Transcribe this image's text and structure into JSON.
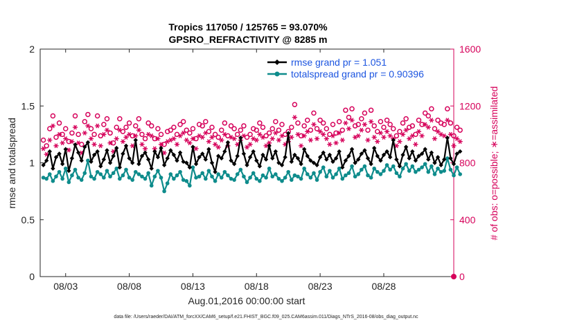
{
  "chart_data": {
    "type": "line",
    "title_line1": "Tropics 117050 / 125765 = 93.070%",
    "title_line2": "GPSRO_REFRACTIVITY @ 8285 m",
    "xlabel": "Aug.01,2016 00:00:00 start",
    "ylabel_left": "rmse and totalspread",
    "ylabel_right": "# of obs: o=possible; ∗=assimilated",
    "xlim": [
      0,
      32.5
    ],
    "ylim_left": [
      0,
      2
    ],
    "ylim_right": [
      0,
      1600
    ],
    "x_ticks": [
      {
        "value": 2,
        "label": "08/03"
      },
      {
        "value": 7,
        "label": "08/08"
      },
      {
        "value": 12,
        "label": "08/13"
      },
      {
        "value": 17,
        "label": "08/18"
      },
      {
        "value": 22,
        "label": "08/23"
      },
      {
        "value": 27,
        "label": "08/28"
      }
    ],
    "y_ticks_left": [
      {
        "value": 0,
        "label": "0"
      },
      {
        "value": 0.5,
        "label": "0.5"
      },
      {
        "value": 1,
        "label": "1"
      },
      {
        "value": 1.5,
        "label": "1.5"
      },
      {
        "value": 2,
        "label": "2"
      }
    ],
    "y_ticks_right": [
      {
        "value": 0,
        "label": "0"
      },
      {
        "value": 400,
        "label": "400"
      },
      {
        "value": 800,
        "label": "800"
      },
      {
        "value": 1200,
        "label": "1200"
      },
      {
        "value": 1600,
        "label": "1600"
      }
    ],
    "legend_position": "top-right",
    "series": [
      {
        "name": "rmse grand pr = 1.051",
        "axis": "left",
        "color": "#000000",
        "marker": "diamond",
        "values": [
          0.98,
          1.02,
          1.1,
          0.95,
          1.05,
          1.08,
          0.99,
          1.12,
          0.93,
          1.04,
          1.16,
          1.09,
          1.02,
          1.14,
          1.18,
          1.01,
          1.07,
          1.1,
          0.97,
          1.03,
          1.11,
          1.0,
          1.06,
          1.13,
          0.96,
          1.08,
          1.15,
          1.04,
          1.0,
          1.2,
          0.99,
          1.06,
          1.09,
          1.03,
          0.95,
          1.1,
          1.05,
          1.13,
          0.98,
          1.04,
          1.11,
          1.07,
          1.02,
          1.09,
          1.01,
          1.0,
          0.96,
          1.14,
          0.99,
          1.05,
          1.08,
          1.03,
          1.12,
          1.0,
          0.92,
          1.06,
          1.04,
          1.1,
          1.18,
          1.02,
          0.99,
          1.06,
          1.22,
          1.08,
          0.98,
          1.05,
          1.1,
          1.02,
          0.97,
          1.07,
          1.03,
          1.15,
          1.04,
          1.1,
          1.0,
          0.98,
          1.05,
          1.26,
          1.01,
          1.07,
          1.04,
          0.99,
          1.12,
          1.06,
          1.02,
          1.0,
          0.98,
          1.05,
          1.09,
          1.03,
          1.07,
          1.01,
          1.04,
          1.1,
          0.96,
          1.02,
          1.06,
          1.12,
          1.0,
          1.03,
          1.08,
          1.11,
          1.04,
          0.99,
          1.13,
          1.06,
          1.02,
          1.07,
          1.1,
          1.05,
          1.2,
          1.03,
          0.97,
          1.07,
          1.14,
          1.04,
          1.1,
          1.02,
          1.06,
          1.08,
          1.12,
          1.03,
          1.09,
          1.0,
          1.05,
          0.98,
          1.03,
          1.22,
          1.04,
          0.99,
          1.08,
          1.1
        ]
      },
      {
        "name": "totalspread grand pr = 0.90396",
        "axis": "left",
        "color": "#0e8c8c",
        "marker": "circle",
        "values": [
          0.87,
          0.86,
          0.9,
          0.84,
          0.88,
          0.92,
          0.86,
          0.95,
          0.83,
          0.89,
          0.94,
          0.87,
          0.85,
          0.91,
          1.02,
          0.88,
          0.86,
          0.92,
          0.9,
          0.87,
          0.93,
          0.88,
          0.91,
          0.95,
          0.86,
          0.89,
          0.94,
          0.87,
          0.85,
          0.92,
          0.9,
          0.88,
          0.86,
          0.91,
          0.8,
          0.88,
          0.93,
          0.87,
          0.75,
          0.82,
          0.9,
          0.86,
          0.89,
          0.92,
          0.85,
          0.84,
          0.8,
          0.96,
          0.87,
          0.88,
          0.91,
          0.86,
          0.93,
          0.88,
          0.84,
          0.9,
          0.87,
          0.92,
          0.89,
          0.86,
          0.85,
          0.9,
          0.94,
          0.88,
          0.83,
          0.87,
          0.91,
          0.86,
          0.84,
          0.89,
          0.87,
          0.95,
          0.88,
          0.9,
          0.86,
          0.84,
          0.87,
          0.92,
          0.85,
          0.89,
          0.88,
          0.86,
          0.95,
          0.9,
          0.87,
          0.91,
          0.85,
          0.92,
          0.96,
          0.88,
          0.93,
          0.87,
          0.9,
          0.95,
          0.86,
          0.89,
          0.91,
          0.97,
          0.88,
          0.9,
          0.94,
          0.97,
          0.89,
          0.87,
          0.95,
          0.92,
          0.9,
          0.93,
          0.98,
          0.94,
          0.97,
          0.91,
          0.88,
          0.95,
          0.99,
          0.93,
          0.97,
          0.92,
          0.94,
          0.96,
          0.99,
          0.92,
          0.97,
          0.9,
          0.95,
          0.92,
          0.93,
          1.04,
          0.94,
          0.89,
          0.96,
          0.9
        ]
      },
      {
        "name": "possible",
        "axis": "right",
        "color": "#d6005a",
        "marker": "o",
        "values": [
          960,
          920,
          1040,
          1130,
          980,
          1080,
          1000,
          1040,
          950,
          1010,
          1130,
          1000,
          930,
          1090,
          1140,
          1040,
          1000,
          1130,
          990,
          1070,
          1110,
          1010,
          940,
          1050,
          1110,
          1020,
          1050,
          1080,
          990,
          1060,
          1110,
          1000,
          970,
          1080,
          1060,
          970,
          1040,
          1000,
          930,
          1020,
          1030,
          1050,
          1000,
          1070,
          1090,
          1030,
          1010,
          1040,
          970,
          1070,
          1060,
          1090,
          1020,
          1050,
          1000,
          980,
          1030,
          1080,
          990,
          1060,
          1040,
          1000,
          1030,
          1060,
          980,
          1000,
          1040,
          1030,
          1080,
          1050,
          990,
          1010,
          1040,
          1090,
          1030,
          1070,
          1000,
          1020,
          1050,
          1210,
          1080,
          990,
          1060,
          1100,
          1030,
          1150,
          1040,
          1100,
          1080,
          1040,
          1000,
          1070,
          1010,
          1090,
          1030,
          1170,
          1120,
          1180,
          1060,
          1070,
          1110,
          1150,
          1030,
          1170,
          1060,
          1020,
          1090,
          1050,
          1100,
          1070,
          1040,
          990,
          1020,
          1080,
          1110,
          1050,
          1060,
          1000,
          1100,
          1070,
          1150,
          1130,
          1180,
          1040,
          1100,
          1080,
          1070,
          1180,
          1080,
          990,
          1050,
          1030
        ]
      },
      {
        "name": "assimilated",
        "axis": "right",
        "color": "#d6005a",
        "marker": "*",
        "values": [
          900,
          860,
          960,
          1060,
          920,
          1000,
          940,
          970,
          890,
          950,
          1050,
          940,
          870,
          1010,
          1060,
          970,
          930,
          1060,
          920,
          1000,
          1030,
          940,
          880,
          970,
          1030,
          950,
          980,
          1000,
          920,
          990,
          1030,
          930,
          900,
          1000,
          990,
          900,
          970,
          930,
          870,
          950,
          960,
          970,
          930,
          990,
          1010,
          960,
          940,
          970,
          900,
          990,
          980,
          1010,
          950,
          980,
          930,
          910,
          960,
          1000,
          920,
          980,
          970,
          930,
          960,
          990,
          910,
          930,
          970,
          960,
          1000,
          980,
          920,
          940,
          970,
          1010,
          960,
          990,
          930,
          950,
          980,
          1120,
          1000,
          920,
          990,
          1020,
          960,
          1070,
          970,
          1020,
          1000,
          970,
          930,
          990,
          940,
          1010,
          960,
          1080,
          1040,
          1100,
          980,
          990,
          1030,
          1070,
          960,
          1090,
          980,
          950,
          1010,
          980,
          1020,
          990,
          970,
          920,
          950,
          1000,
          1030,
          970,
          990,
          930,
          1020,
          990,
          1070,
          1050,
          1100,
          970,
          1020,
          1000,
          990,
          1100,
          1000,
          920,
          970,
          950
        ]
      }
    ],
    "legend": [
      {
        "label": "rmse grand pr = 1.051"
      },
      {
        "label": "totalspread grand pr = 0.90396"
      }
    ],
    "footnote": "data file: /Users/raeder/DAI/ATM_forcXX/CAM6_setup/f.e21.FHIST_BGC.f09_025.CAM6assim.011/Diags_NTrS_2016-08/obs_diag_output.nc"
  }
}
